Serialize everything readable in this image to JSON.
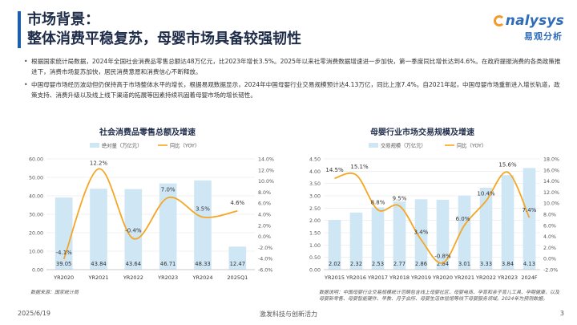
{
  "header": {
    "title_line1": "市场背景：",
    "title_line2": "整体消费平稳复苏，母婴市场具备较强韧性"
  },
  "logo": {
    "en": "nalysys",
    "cn": "易观分析"
  },
  "bullets": [
    "根据国家统计局数据，2024年全国社会消费品零售总额达48万亿元，比2023年增长3.5%。2025年以来社零消费数据增速进一步加快，第一季度同比增长达到4.6%。在政府提振消费的各类政策推进下，消费市场复苏加快，居民消费意愿和消费信心不断释放。",
    "中国母婴市场经历波动但仍保持高于市场整体水平的增长，根据易观数据显示，2024年中国母婴行业交易规模预计达4.13万亿，同比上涨7.4%。自2021年起，中国母婴市场重新进入增长轨道，政策支持、消费升级以及线上线下渠道的拓展等因素持续巩固着母婴市场的增长韧性。"
  ],
  "chart_data": [
    {
      "type": "bar",
      "title": "社会消费品零售总额及增速",
      "categories": [
        "YR2020",
        "YR2021",
        "YR2022",
        "YR2023",
        "YR2024",
        "2025Q1"
      ],
      "series": [
        {
          "name": "绝对量（万亿元）",
          "type": "bar",
          "axis": "left",
          "values": [
            39.05,
            43.84,
            43.64,
            46.71,
            48.33,
            12.47
          ]
        },
        {
          "name": "同比（YOY）",
          "type": "line",
          "axis": "right",
          "values": [
            -4.1,
            12.2,
            -0.4,
            7.0,
            3.5,
            4.6
          ]
        }
      ],
      "point_labels": [
        "-4.1%",
        "12.2%",
        "-0.4%",
        "7.0%",
        "3.5%",
        "4.6%"
      ],
      "value_labels": [
        "39.05",
        "43.84",
        "43.64",
        "46.71",
        "48.33",
        "12.47"
      ],
      "ylim_left": [
        0,
        60
      ],
      "yticks_left": [
        "0.00",
        "10.00",
        "20.00",
        "30.00",
        "40.00",
        "50.00",
        "60.00"
      ],
      "ylim_right": [
        -6,
        14
      ],
      "yticks_right": [
        "-6.0%",
        "-4.0%",
        "-2.0%",
        "0.0%",
        "2.0%",
        "4.0%",
        "6.0%",
        "8.0%",
        "10.0%",
        "12.0%",
        "14.0%"
      ],
      "legend": "top",
      "source": "数据来源：国家统计局",
      "colors": {
        "bar": "#cfe6f5",
        "line": "#f5a623"
      }
    },
    {
      "type": "bar",
      "title": "母婴行业市场交易规模及增速",
      "categories": [
        "YR2015",
        "YR2016",
        "YR2017",
        "YR2018",
        "YR2019",
        "YR2020",
        "YR2021",
        "YR2022",
        "YR2023",
        "2024F"
      ],
      "series": [
        {
          "name": "交易规模（万亿元）",
          "type": "bar",
          "axis": "left",
          "values": [
            2.02,
            2.32,
            2.53,
            2.77,
            2.86,
            2.84,
            3.01,
            3.33,
            3.84,
            4.13
          ]
        },
        {
          "name": "同比（YOY）",
          "type": "line",
          "axis": "right",
          "values": [
            14.5,
            15.1,
            8.8,
            9.5,
            3.4,
            -0.8,
            6.0,
            10.4,
            15.6,
            7.4
          ]
        }
      ],
      "point_labels": [
        "14.5%",
        "15.1%",
        "8.8%",
        "9.5%",
        "3.4%",
        "-0.8%",
        "6.0%",
        "10.4%",
        "15.6%",
        "7.4%"
      ],
      "value_labels": [
        "2.02",
        "2.32",
        "2.53",
        "2.77",
        "2.86",
        "2.84",
        "3.01",
        "3.33",
        "3.84",
        "4.13"
      ],
      "ylim_left": [
        0,
        4.5
      ],
      "yticks_left": [
        "0.00",
        "0.50",
        "1.00",
        "1.50",
        "2.00",
        "2.50",
        "3.00",
        "3.50",
        "4.00",
        "4.50"
      ],
      "ylim_right": [
        -2,
        18
      ],
      "yticks_right": [
        "-2.0%",
        "0.0%",
        "2.0%",
        "4.0%",
        "6.0%",
        "8.0%",
        "10.0%",
        "12.0%",
        "14.0%",
        "16.0%",
        "18.0%"
      ],
      "legend": "top",
      "source": "数据说明：中国母婴行业交易规模统计范畴包含线上母婴社区、母婴电商、孕育和亲子育儿工具、孕期健康，以及母婴新零售、母婴智能硬件、早教、月子会所、母婴生活体验馆等线下母婴服务领域。2024年为预测数据。",
      "colors": {
        "bar": "#cfe6f5",
        "line": "#f5a623"
      }
    }
  ],
  "footer": {
    "date": "2025/6/19",
    "center": "激发科技与创新活力",
    "page": "3"
  }
}
